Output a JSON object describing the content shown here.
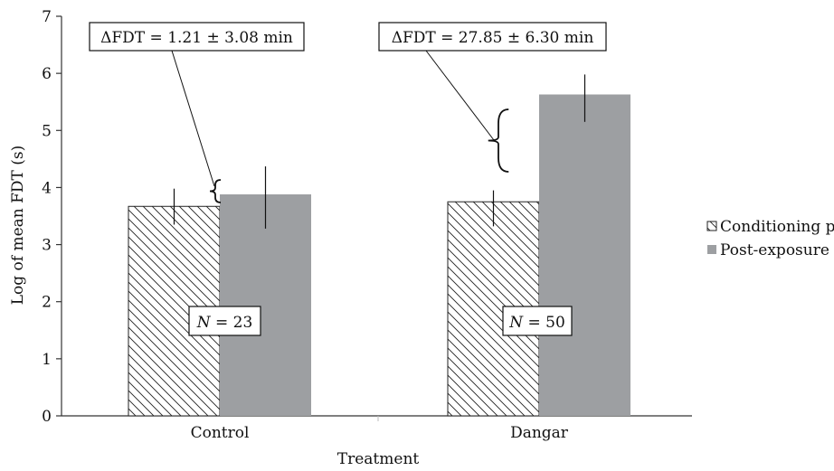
{
  "chart_data": {
    "type": "bar",
    "categories": [
      "Control",
      "Dangar"
    ],
    "series": [
      {
        "name": "Conditioning phase",
        "values": [
          3.67,
          3.75
        ],
        "error_low": [
          3.35,
          3.32
        ],
        "error_high": [
          3.98,
          3.95
        ],
        "fill": "hatch"
      },
      {
        "name": "Post-exposure phase",
        "values": [
          3.88,
          5.63
        ],
        "error_low": [
          3.28,
          5.15
        ],
        "error_high": [
          4.37,
          5.98
        ],
        "fill": "#9d9fa2"
      }
    ],
    "xlabel": "Treatment",
    "ylabel": "Log of mean FDT (s)",
    "ylim": [
      0,
      7
    ],
    "yticks": [
      "0",
      "1",
      "2",
      "3",
      "4",
      "5",
      "6",
      "7"
    ],
    "grid": false,
    "legend_position": "right",
    "annotations": {
      "delta": [
        {
          "prefix": "ΔFDT = ",
          "value": "1.21 ± 3.08 min"
        },
        {
          "prefix": "ΔFDT = ",
          "value": "27.85 ± 6.30 min"
        }
      ],
      "n_labels": [
        {
          "italic": "N",
          "rest": " = 23"
        },
        {
          "italic": "N",
          "rest": " = 50"
        }
      ]
    }
  },
  "colors": {
    "post_exposure": "#9d9fa2",
    "axis": "#333333",
    "text": "#111111"
  }
}
